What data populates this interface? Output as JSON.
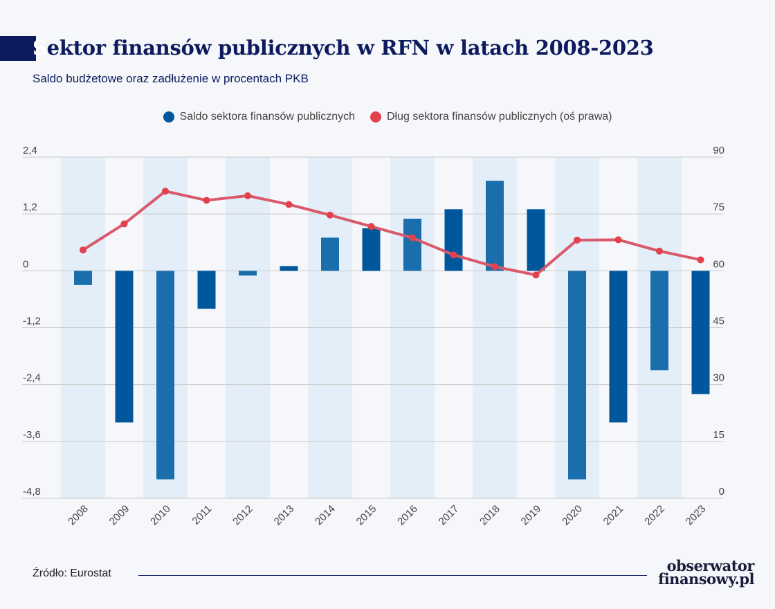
{
  "header": {
    "title_first": "S",
    "title_rest": "ektor finansów publicznych w RFN w latach 2008-2023",
    "subtitle": "Saldo budżetowe oraz zadłużenie w procentach PKB"
  },
  "legend": {
    "balance": "Saldo sektora finansów publicznych",
    "debt": "Dług sektora finansów publicznych (oś prawa)"
  },
  "footer": {
    "source": "Źródło: Eurostat",
    "logo_line1": "obserwator",
    "logo_line2": "finansowy.pl"
  },
  "colors": {
    "bar_dark": "#00579c",
    "bar_light": "#1b6eac",
    "line": "#d9596a",
    "marker": "#e2404b",
    "band": "#e3eef8",
    "grid": "#c8c8c8"
  },
  "chart_data": {
    "type": "bar+line",
    "categories": [
      "2008",
      "2009",
      "2010",
      "2011",
      "2012",
      "2013",
      "2014",
      "2015",
      "2016",
      "2017",
      "2018",
      "2019",
      "2020",
      "2021",
      "2022",
      "2023"
    ],
    "left_axis": {
      "min": -4.8,
      "max": 2.4,
      "ticks": [
        "2,4",
        "1,2",
        "0",
        "-1,2",
        "-2,4",
        "-3,6",
        "-4,8"
      ],
      "tick_values": [
        2.4,
        1.2,
        0,
        -1.2,
        -2.4,
        -3.6,
        -4.8
      ]
    },
    "right_axis": {
      "min": 0,
      "max": 90,
      "ticks": [
        "90",
        "75",
        "60",
        "45",
        "30",
        "15",
        "0"
      ],
      "tick_values": [
        90,
        75,
        60,
        45,
        30,
        15,
        0
      ]
    },
    "series": [
      {
        "name": "Saldo sektora finansów publicznych",
        "type": "bar",
        "axis": "left",
        "values": [
          -0.3,
          -3.2,
          -4.4,
          -0.8,
          -0.1,
          0.1,
          0.7,
          0.9,
          1.1,
          1.3,
          1.9,
          1.3,
          -4.4,
          -3.2,
          -2.1,
          -2.6
        ]
      },
      {
        "name": "Dług sektora finansów publicznych (oś prawa)",
        "type": "line",
        "axis": "right",
        "values": [
          65.5,
          72.4,
          81.0,
          78.6,
          79.8,
          77.5,
          74.7,
          71.7,
          68.7,
          64.2,
          61.1,
          58.9,
          68.1,
          68.2,
          65.2,
          62.9
        ]
      }
    ],
    "bands": [
      true,
      false,
      true,
      false,
      true,
      false,
      true,
      false,
      true,
      false,
      true,
      false,
      true,
      false,
      true,
      false
    ]
  }
}
